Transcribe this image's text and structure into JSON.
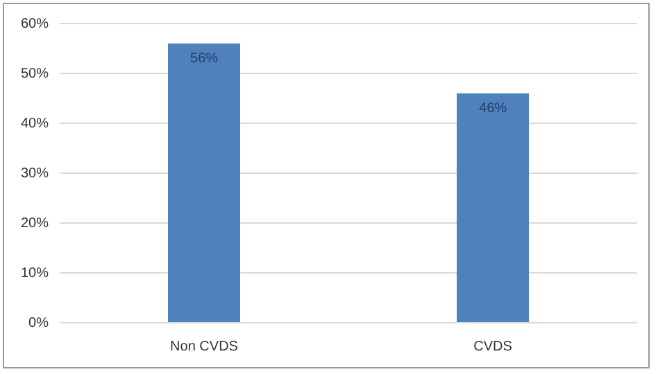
{
  "chart_data": {
    "type": "bar",
    "categories": [
      "Non CVDS",
      "CVDS"
    ],
    "values": [
      56,
      46
    ],
    "color": "#4f81bd",
    "value_labels": [
      "56%",
      "46%"
    ],
    "ylim": [
      0,
      60
    ],
    "yticks": [
      {
        "value": 0,
        "label": "0%"
      },
      {
        "value": 10,
        "label": "10%"
      },
      {
        "value": 20,
        "label": "20%"
      },
      {
        "value": 30,
        "label": "30%"
      },
      {
        "value": 40,
        "label": "40%"
      },
      {
        "value": 50,
        "label": "50%"
      },
      {
        "value": 60,
        "label": "60%"
      }
    ],
    "grid": "y",
    "legend": false
  }
}
